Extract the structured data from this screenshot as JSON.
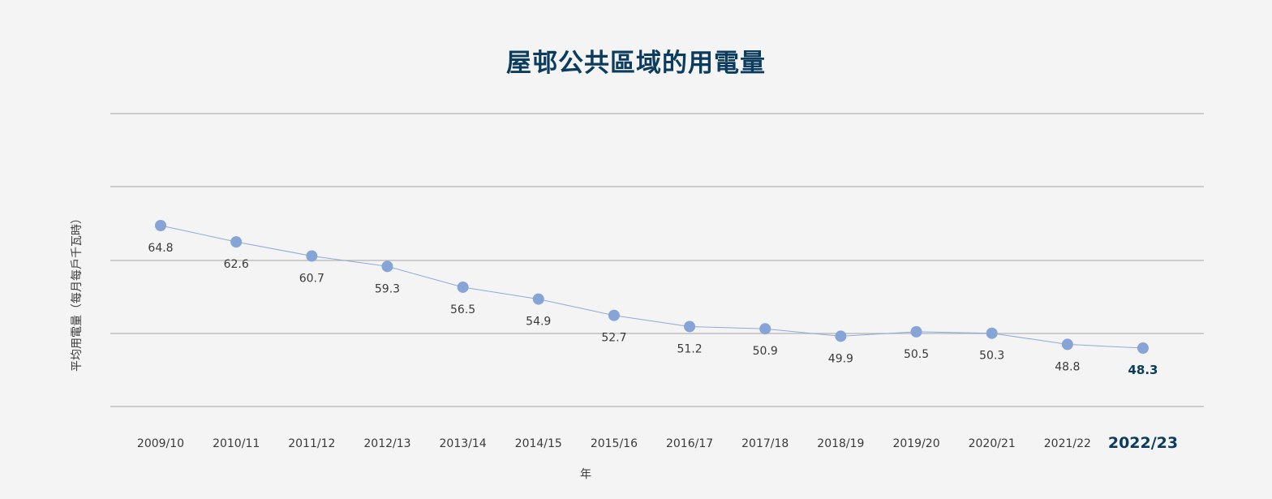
{
  "chart_data": {
    "type": "line",
    "title": "屋邨公共區域的用電量",
    "xlabel": "年",
    "ylabel": "平均用電量（每月每戶千瓦時）",
    "categories": [
      "2009/10",
      "2010/11",
      "2011/12",
      "2012/13",
      "2013/14",
      "2014/15",
      "2015/16",
      "2016/17",
      "2017/18",
      "2018/19",
      "2019/20",
      "2020/21",
      "2021/22",
      "2022/23"
    ],
    "series": [
      {
        "values": [
          64.8,
          62.6,
          60.7,
          59.3,
          56.5,
          54.9,
          52.7,
          51.2,
          50.9,
          49.9,
          50.5,
          50.3,
          48.8,
          48.3
        ],
        "color": "#86a4d6"
      }
    ],
    "highlight_category": "2022/23",
    "highlight_color": "#0b3c5d",
    "grid": true,
    "legend": false
  }
}
